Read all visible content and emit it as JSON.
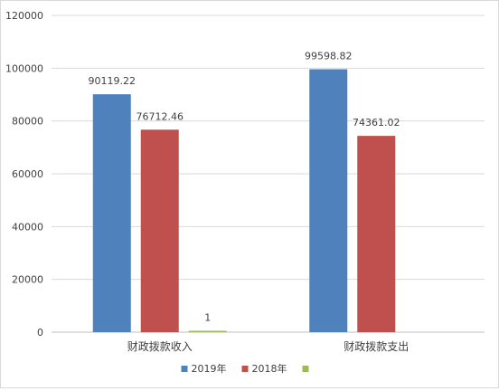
{
  "chart_data": {
    "type": "bar",
    "categories": [
      "财政拨款收入",
      "财政拨款支出"
    ],
    "series": [
      {
        "name": "2019年",
        "color": "#4F81BD",
        "values": [
          90119.22,
          99598.82
        ],
        "labels": [
          "90119.22",
          "99598.82"
        ]
      },
      {
        "name": "2018年",
        "color": "#C0504D",
        "values": [
          76712.46,
          74361.02
        ],
        "labels": [
          "76712.46",
          "74361.02"
        ]
      },
      {
        "name": "",
        "color": "#9BBB59",
        "values": [
          1,
          null
        ],
        "labels": [
          "1",
          null
        ]
      }
    ],
    "yticks": [
      "0",
      "20000",
      "40000",
      "60000",
      "80000",
      "100000",
      "120000"
    ],
    "ylim": [
      0,
      120000
    ],
    "grid": true,
    "legend_position": "bottom"
  }
}
